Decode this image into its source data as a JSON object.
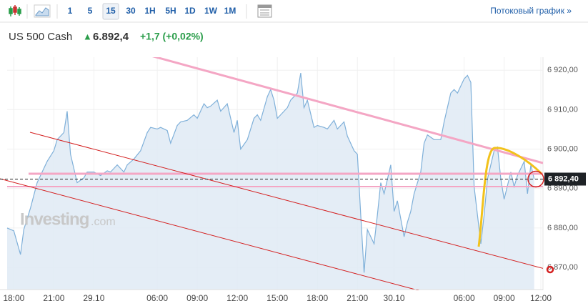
{
  "toolbar": {
    "intervals": [
      "1",
      "5",
      "15",
      "30",
      "1H",
      "5H",
      "1D",
      "1W",
      "1M"
    ],
    "selected_interval": "15",
    "stream_link": "Потоковый график »"
  },
  "header": {
    "instrument": "US 500 Cash",
    "direction": "▲",
    "price": "6.892,4",
    "change": "+1,7 (+0,02%)"
  },
  "watermark": {
    "brand": "Investing",
    "domain": ".com"
  },
  "chart_data": {
    "type": "area",
    "color": "#7fb0d9",
    "fill": "#dfeaf5",
    "grid": true,
    "y_axis_side": "right",
    "x": [
      0,
      2,
      4,
      5,
      7,
      9,
      10,
      12,
      14,
      15,
      17,
      18,
      19,
      21,
      23,
      24,
      26,
      28,
      30,
      31,
      33,
      35,
      36,
      38,
      40,
      42,
      43,
      45,
      46,
      48,
      49,
      51,
      52,
      54,
      56,
      57,
      59,
      60,
      61,
      63,
      64,
      66,
      68,
      69,
      70,
      72,
      74,
      75,
      76,
      78,
      79,
      80,
      81,
      83,
      84,
      85,
      87,
      88,
      89,
      90,
      92,
      93,
      95,
      96,
      98,
      99,
      101,
      102,
      104,
      105,
      106,
      107,
      108,
      110,
      111,
      112,
      113,
      115,
      116,
      117,
      119,
      120,
      121,
      122,
      124,
      125,
      126,
      128,
      130,
      131,
      133,
      134,
      135,
      137,
      138,
      139,
      140,
      142,
      143,
      144,
      146,
      147,
      148,
      149,
      151,
      152,
      153,
      155,
      156,
      157,
      158
    ],
    "values": [
      6880,
      6879.3,
      6873.3,
      6879.6,
      6885.1,
      6891.5,
      6893.3,
      6896.9,
      6899.6,
      6902.4,
      6904.2,
      6909.6,
      6898.7,
      6891.5,
      6892.7,
      6894.2,
      6894.2,
      6893.3,
      6894.5,
      6894.2,
      6896,
      6894.2,
      6896,
      6897.5,
      6899.6,
      6904.2,
      6905.5,
      6905.1,
      6905.5,
      6904.7,
      6901.5,
      6906,
      6906.9,
      6907.3,
      6908.7,
      6907.8,
      6911.5,
      6910.5,
      6910.9,
      6912.4,
      6909.6,
      6911.5,
      6904.2,
      6907.3,
      6900,
      6902.4,
      6907.8,
      6908.7,
      6907.3,
      6913.3,
      6915.1,
      6912.4,
      6907.8,
      6909.6,
      6910.5,
      6912.4,
      6914.2,
      6919.3,
      6910.5,
      6912.4,
      6905.5,
      6906,
      6905.5,
      6905.1,
      6907.3,
      6905.1,
      6906.9,
      6903.3,
      6899.6,
      6898.7,
      6883.3,
      6868.7,
      6879.6,
      6876,
      6883.3,
      6891.5,
      6888.7,
      6896,
      6884.2,
      6886.9,
      6877.8,
      6881.5,
      6884.2,
      6888.7,
      6894.2,
      6901.5,
      6903.6,
      6902.4,
      6902.4,
      6906.9,
      6914.2,
      6915.1,
      6914.2,
      6917.8,
      6918.7,
      6916.9,
      6890.5,
      6876,
      6883.3,
      6892.4,
      6899.6,
      6900.5,
      6892.4,
      6887.3,
      6894.2,
      6890.5,
      6893.3,
      6896.9,
      6888.7,
      6896,
      6892.4
    ],
    "xlim": [
      0,
      160
    ],
    "xticks": [
      {
        "value": 2,
        "label": "18:00"
      },
      {
        "value": 14,
        "label": "21:00"
      },
      {
        "value": 26,
        "label": "29.10"
      },
      {
        "value": 45,
        "label": "06:00"
      },
      {
        "value": 57,
        "label": "09:00"
      },
      {
        "value": 69,
        "label": "12:00"
      },
      {
        "value": 81,
        "label": "15:00"
      },
      {
        "value": 93,
        "label": "18:00"
      },
      {
        "value": 105,
        "label": "21:00"
      },
      {
        "value": 116,
        "label": "30.10"
      },
      {
        "value": 137,
        "label": "06:00"
      },
      {
        "value": 149,
        "label": "09:00"
      },
      {
        "value": 160,
        "label": "12:00"
      }
    ],
    "ylim": [
      6864.4,
      6923.3
    ],
    "yticks": [
      {
        "value": 6870,
        "label": "6 870,00"
      },
      {
        "value": 6880,
        "label": "6 880,00"
      },
      {
        "value": 6890,
        "label": "6 890,00"
      },
      {
        "value": 6900,
        "label": "6 900,00"
      },
      {
        "value": 6910,
        "label": "6 910,00"
      },
      {
        "value": 6920,
        "label": "6 920,00"
      }
    ],
    "current_price": {
      "value": 6892.4,
      "label": "6 892,40"
    }
  }
}
